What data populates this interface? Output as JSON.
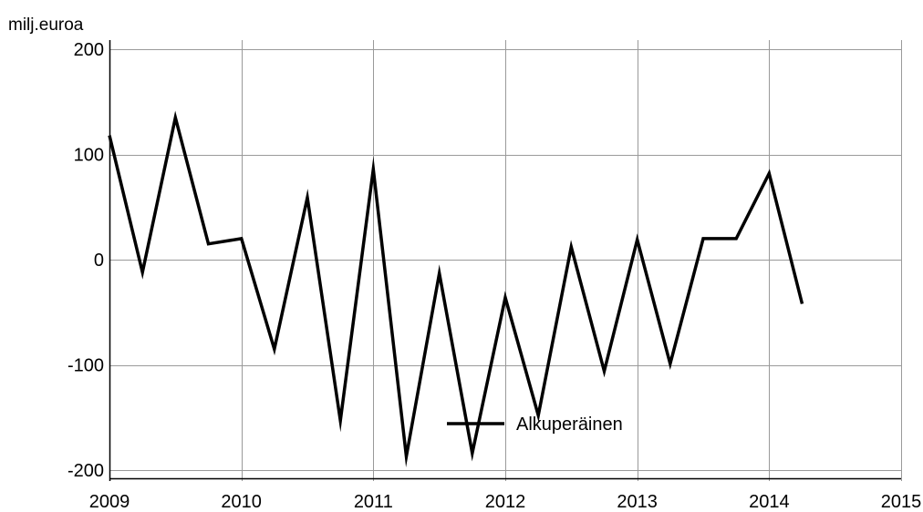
{
  "chart_data": {
    "type": "line",
    "title": "",
    "xlabel": "",
    "ylabel": "milj.euroa",
    "ylim": [
      -200,
      200
    ],
    "xlim": [
      2009,
      2015
    ],
    "grid": true,
    "legend_placement": "bottom-center",
    "y_ticks": [
      "200",
      "100",
      "0",
      "-100",
      "-200"
    ],
    "y_tick_values": [
      200,
      100,
      0,
      -100,
      -200
    ],
    "x_ticks": [
      "2009",
      "2010",
      "2011",
      "2012",
      "2013",
      "2014",
      "2015"
    ],
    "x_tick_values": [
      2009,
      2010,
      2011,
      2012,
      2013,
      2014,
      2015
    ],
    "series": [
      {
        "name": "Alkuperäinen",
        "color": "#000000",
        "x": [
          2009.0,
          2009.25,
          2009.5,
          2009.75,
          2010.0,
          2010.25,
          2010.5,
          2010.75,
          2011.0,
          2011.25,
          2011.5,
          2011.75,
          2012.0,
          2012.25,
          2012.5,
          2012.75,
          2013.0,
          2013.25,
          2013.5,
          2013.75,
          2014.0,
          2014.25
        ],
        "values": [
          118,
          -12,
          135,
          15,
          20,
          -85,
          59,
          -153,
          86,
          -187,
          -13,
          -184,
          -36,
          -148,
          12,
          -106,
          19,
          -99,
          20,
          20,
          82,
          -42
        ]
      }
    ]
  },
  "colors": {
    "grid": "#9a9a9a",
    "axis": "#000000",
    "line": "#000000",
    "background": "#ffffff"
  }
}
